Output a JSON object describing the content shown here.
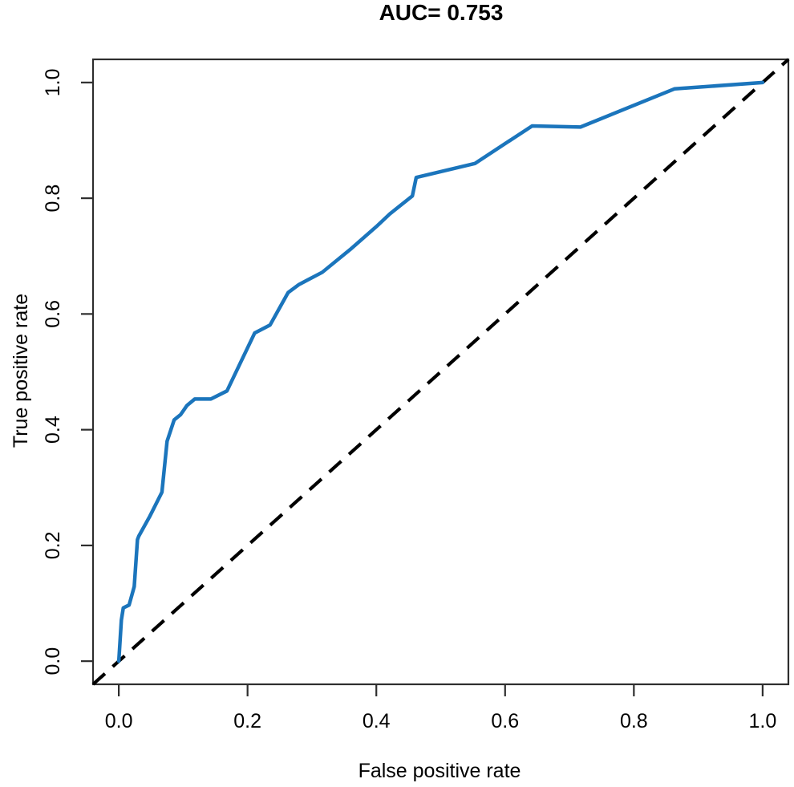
{
  "figure": {
    "background_color": "#ffffff",
    "text_color": "#000000"
  },
  "chart_data": {
    "type": "line",
    "title": "AUC= 0.753",
    "auc_value": 0.753,
    "xlabel": "False positive rate",
    "ylabel": "True positive rate",
    "xlim": [
      -0.04,
      1.04
    ],
    "ylim": [
      -0.04,
      1.04
    ],
    "grid": false,
    "legend": "none",
    "axis_color": "#2e2e2e",
    "x_ticks": [
      0.0,
      0.2,
      0.4,
      0.6,
      0.8,
      1.0
    ],
    "x_tick_labels": [
      "0.0",
      "0.2",
      "0.4",
      "0.6",
      "0.8",
      "1.0"
    ],
    "y_ticks": [
      0.0,
      0.2,
      0.4,
      0.6,
      0.8,
      1.0
    ],
    "y_tick_labels": [
      "0.0",
      "0.2",
      "0.4",
      "0.6",
      "0.8",
      "1.0"
    ],
    "series": [
      {
        "name": "ROC curve",
        "style": "solid",
        "color": "#1b75bc",
        "line_width": 4.5,
        "points": [
          [
            0.0,
            0.0
          ],
          [
            0.004,
            0.071
          ],
          [
            0.007,
            0.092
          ],
          [
            0.016,
            0.097
          ],
          [
            0.024,
            0.129
          ],
          [
            0.029,
            0.21
          ],
          [
            0.031,
            0.216
          ],
          [
            0.048,
            0.25
          ],
          [
            0.067,
            0.292
          ],
          [
            0.075,
            0.38
          ],
          [
            0.086,
            0.417
          ],
          [
            0.096,
            0.426
          ],
          [
            0.106,
            0.442
          ],
          [
            0.118,
            0.453
          ],
          [
            0.143,
            0.453
          ],
          [
            0.168,
            0.467
          ],
          [
            0.211,
            0.567
          ],
          [
            0.235,
            0.581
          ],
          [
            0.263,
            0.637
          ],
          [
            0.28,
            0.651
          ],
          [
            0.316,
            0.672
          ],
          [
            0.359,
            0.711
          ],
          [
            0.4,
            0.751
          ],
          [
            0.421,
            0.773
          ],
          [
            0.456,
            0.804
          ],
          [
            0.462,
            0.836
          ],
          [
            0.553,
            0.86
          ],
          [
            0.642,
            0.925
          ],
          [
            0.717,
            0.923
          ],
          [
            0.863,
            0.989
          ],
          [
            1.0,
            1.0
          ]
        ]
      },
      {
        "name": "chance diagonal",
        "style": "dashed",
        "color": "#000000",
        "line_width": 4.2,
        "dash_pattern": "20 13",
        "extends_to_plot_corners": true,
        "points": [
          [
            0,
            0
          ],
          [
            1,
            1
          ]
        ]
      }
    ]
  }
}
